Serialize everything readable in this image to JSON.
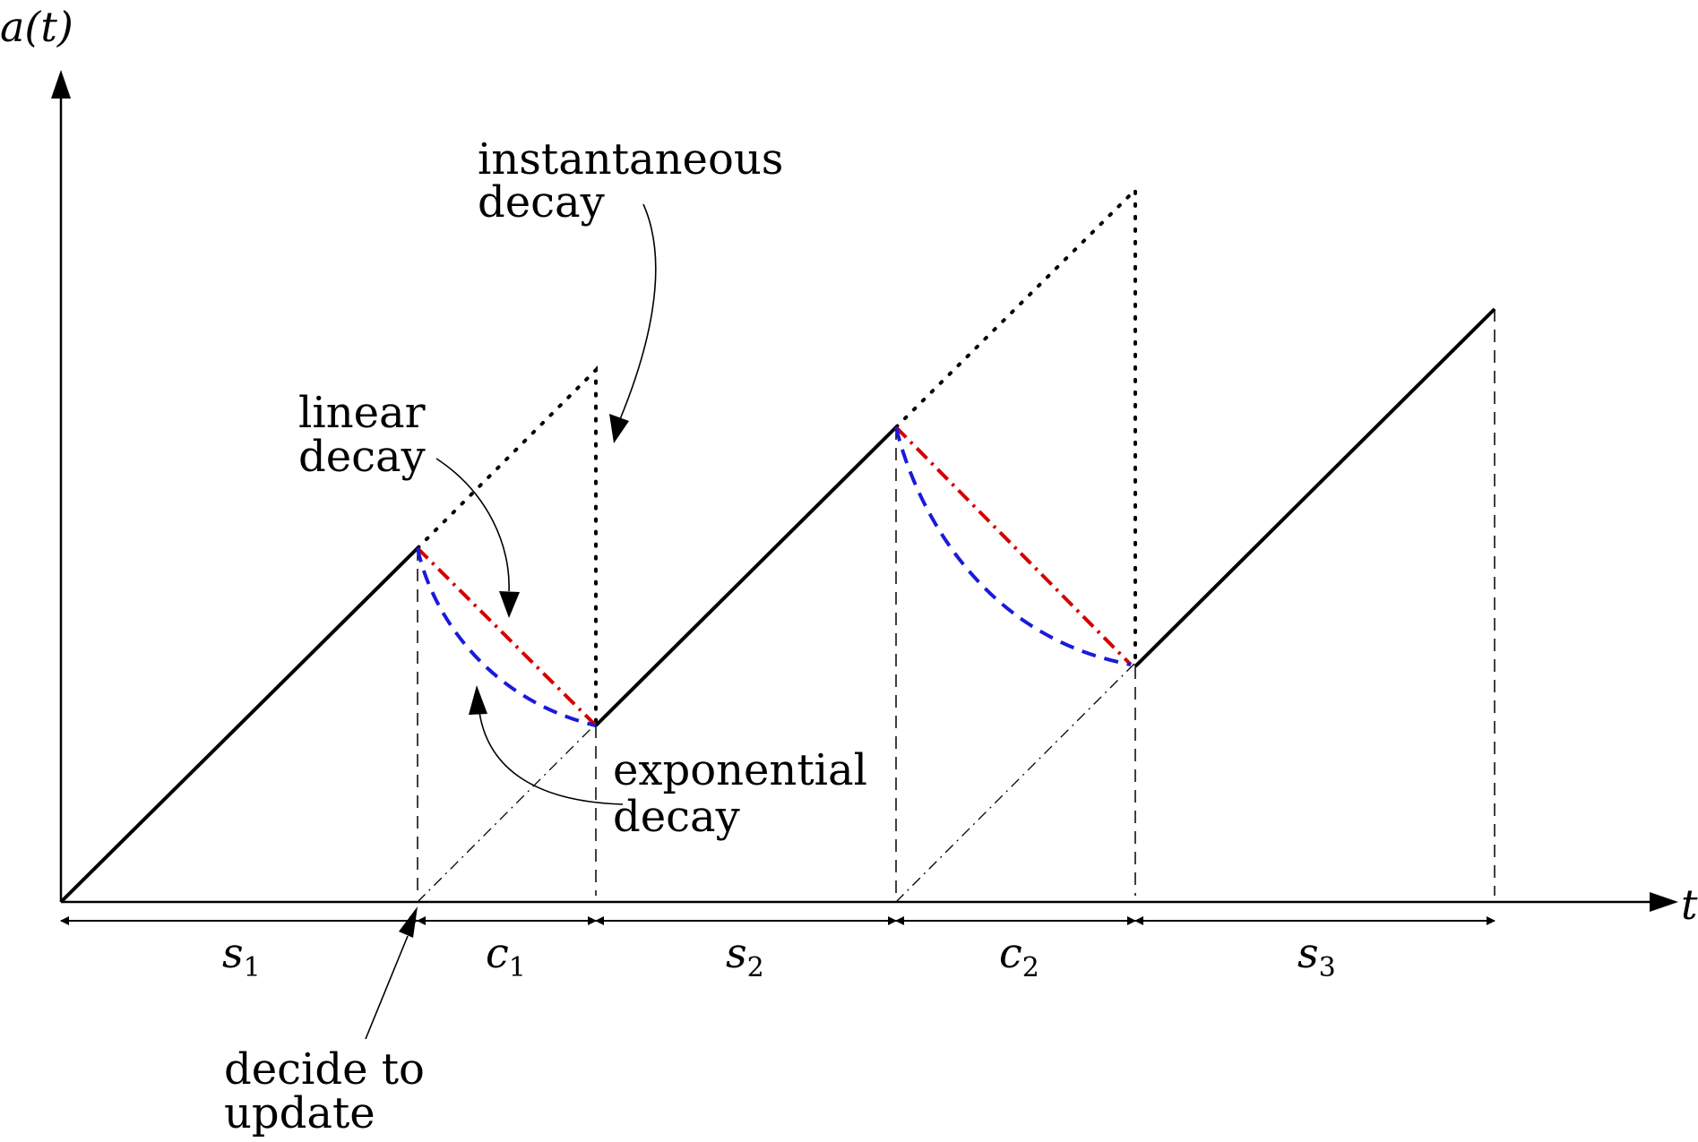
{
  "axes": {
    "y_label": "a(t)",
    "x_label": "t"
  },
  "intervals": [
    {
      "letter": "s",
      "sub": "1"
    },
    {
      "letter": "c",
      "sub": "1"
    },
    {
      "letter": "s",
      "sub": "2"
    },
    {
      "letter": "c",
      "sub": "2"
    },
    {
      "letter": "s",
      "sub": "3"
    }
  ],
  "annotations": {
    "instantaneous": {
      "line1": "instantaneous",
      "line2": "decay"
    },
    "linear": {
      "line1": "linear",
      "line2": "decay"
    },
    "exponential": {
      "line1": "exponential",
      "line2": "decay"
    },
    "decide": {
      "line1": "decide to",
      "line2": "update"
    }
  },
  "colors": {
    "linear_decay": "#d40000",
    "exponential_decay": "#1a1adb",
    "ink": "#000000"
  }
}
